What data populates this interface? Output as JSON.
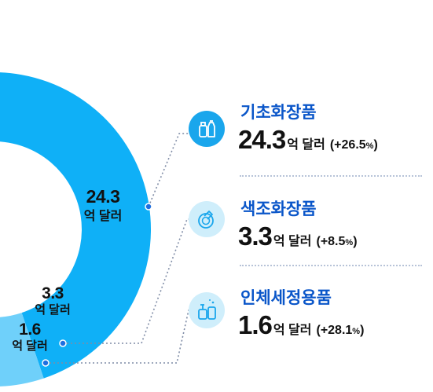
{
  "chart_data": {
    "type": "pie",
    "unit": "억 달러",
    "categories": [
      "기초화장품",
      "색조화장품",
      "인체세정용품"
    ],
    "values": [
      24.3,
      3.3,
      1.6
    ],
    "changes": [
      "+26.5",
      "+8.5",
      "+28.1"
    ],
    "change_unit": "%",
    "colors": [
      "#0fb0f7",
      "#6fd0fa",
      "#f0f0f0"
    ],
    "slice_labels": [
      {
        "value": "24.3",
        "unit": "억 달러"
      },
      {
        "value": "3.3",
        "unit": "억 달러"
      },
      {
        "value": "1.6",
        "unit": "억 달러"
      }
    ]
  },
  "legend": [
    {
      "name": "기초화장품",
      "value": "24.3",
      "unit": "억 달러",
      "change_prefix": "(+26.5",
      "change_pct": "%",
      "change_suffix": ")",
      "icon": "skincare-bottles-icon"
    },
    {
      "name": "색조화장품",
      "value": "3.3",
      "unit": "억 달러",
      "change_prefix": "(+8.5",
      "change_pct": "%",
      "change_suffix": ")",
      "icon": "makeup-compact-icon"
    },
    {
      "name": "인체세정용품",
      "value": "1.6",
      "unit": "억 달러",
      "change_prefix": "(+28.1",
      "change_pct": "%",
      "change_suffix": ")",
      "icon": "body-wash-bottles-icon"
    }
  ],
  "colors": {
    "accent": "#0a56c9",
    "icon_primary": "#1aa6ec",
    "icon_light": "#cfeefb",
    "leader_line": "#7f8ca6"
  }
}
